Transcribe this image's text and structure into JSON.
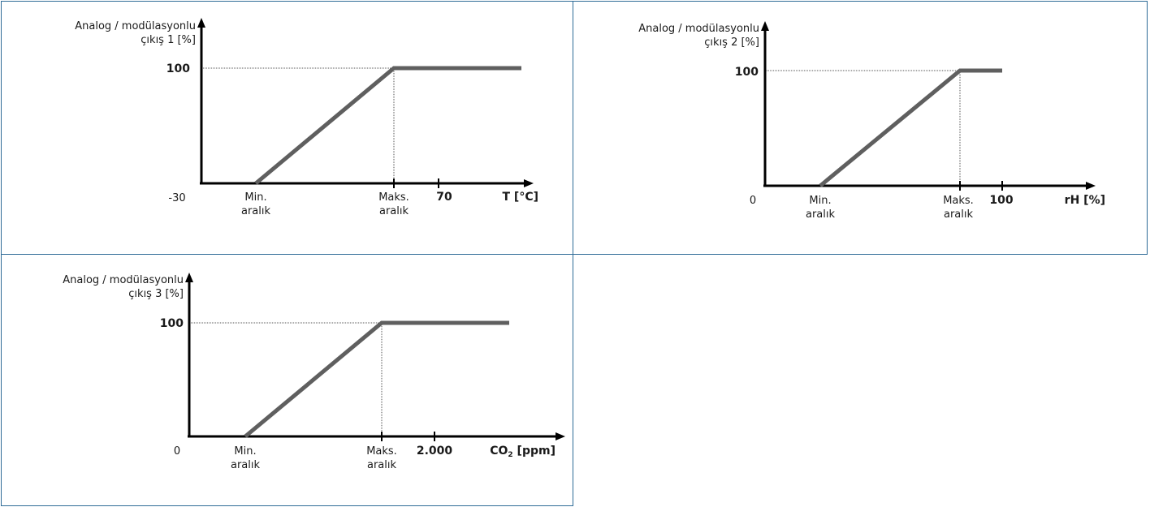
{
  "charts": [
    {
      "y_label_line1": "Analog / modülasyonlu",
      "y_label_line2": "çıkış 1 [%]",
      "y_axis_min": "-30",
      "y_tick_100": "100",
      "x_min_label_line1": "Min.",
      "x_min_label_line2": "aralık",
      "x_max_label_line1": "Maks.",
      "x_max_label_line2": "aralık",
      "x_end_value": "70",
      "x_unit": "T [°C]"
    },
    {
      "y_label_line1": "Analog / modülasyonlu",
      "y_label_line2": "çıkış 2 [%]",
      "y_axis_min": "0",
      "y_tick_100": "100",
      "x_min_label_line1": "Min.",
      "x_min_label_line2": "aralık",
      "x_max_label_line1": "Maks.",
      "x_max_label_line2": "aralık",
      "x_end_value": "100",
      "x_unit": "rH [%]"
    },
    {
      "y_label_line1": "Analog / modülasyonlu",
      "y_label_line2": "çıkış 3 [%]",
      "y_axis_min": "0",
      "y_tick_100": "100",
      "x_min_label_line1": "Min.",
      "x_min_label_line2": "aralık",
      "x_max_label_line1": "Maks.",
      "x_max_label_line2": "aralık",
      "x_end_value": "2.000",
      "x_unit_main": "CO",
      "x_unit_sub": "2",
      "x_unit_rest": " [ppm]"
    }
  ],
  "colors": {
    "axis": "#000000",
    "curve": "#5f5f5f",
    "border": "#2e6b97",
    "guide": "#555555"
  }
}
